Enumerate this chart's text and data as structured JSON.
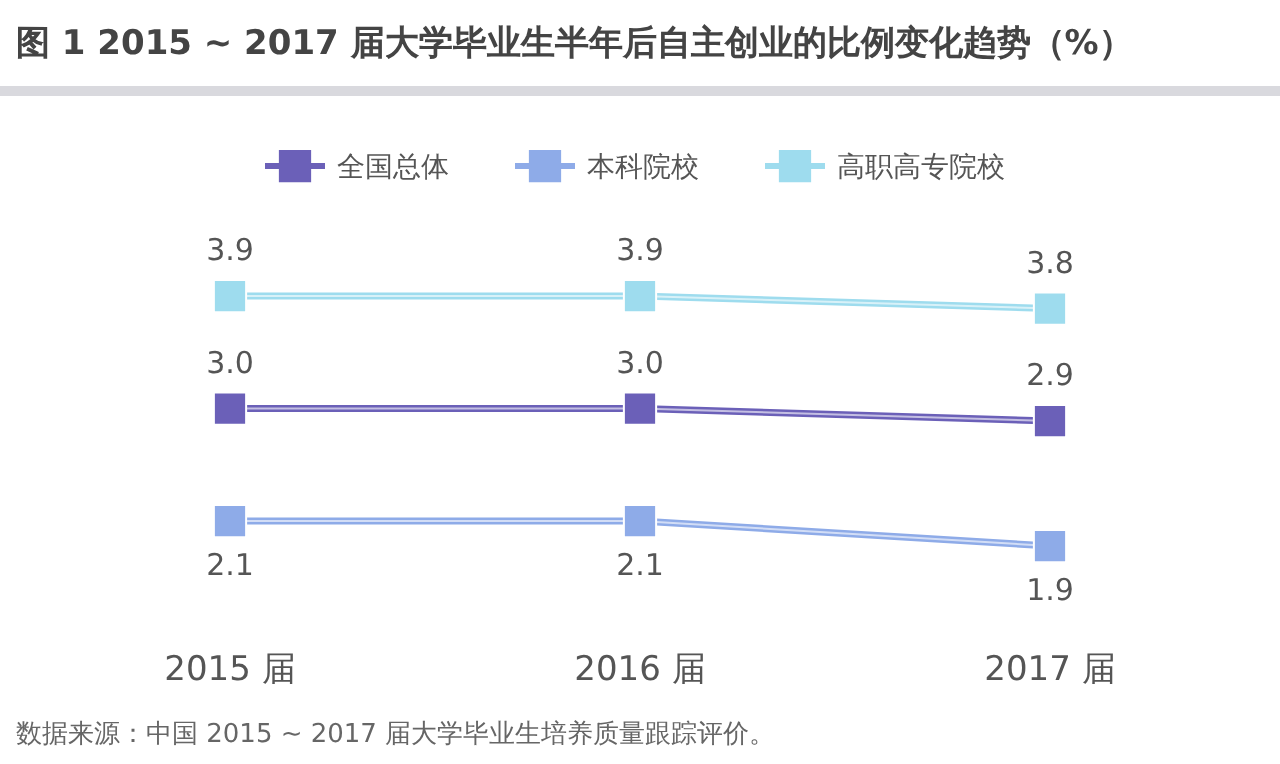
{
  "chart_data": {
    "type": "line",
    "title": "图 1 2015 ~ 2017 届大学毕业生半年后自主创业的比例变化趋势（%）",
    "categories": [
      "2015 届",
      "2016 届",
      "2017 届"
    ],
    "series": [
      {
        "name": "全国总体",
        "color": "#6b60b8",
        "values": [
          3.0,
          3.0,
          2.9
        ],
        "value_labels": [
          "3.0",
          "3.0",
          "2.9"
        ]
      },
      {
        "name": "本科院校",
        "color": "#8eabe8",
        "values": [
          2.1,
          2.1,
          1.9
        ],
        "value_labels": [
          "2.1",
          "2.1",
          "1.9"
        ]
      },
      {
        "name": "高职高专院校",
        "color": "#9edcee",
        "values": [
          3.9,
          3.9,
          3.8
        ],
        "value_labels": [
          "3.9",
          "3.9",
          "3.8"
        ]
      }
    ],
    "legend": "top",
    "marker": "square",
    "grid": false,
    "annotations": [
      "数据来源：中国 2015 ~ 2017 届大学毕业生培养质量跟踪评价。"
    ]
  }
}
